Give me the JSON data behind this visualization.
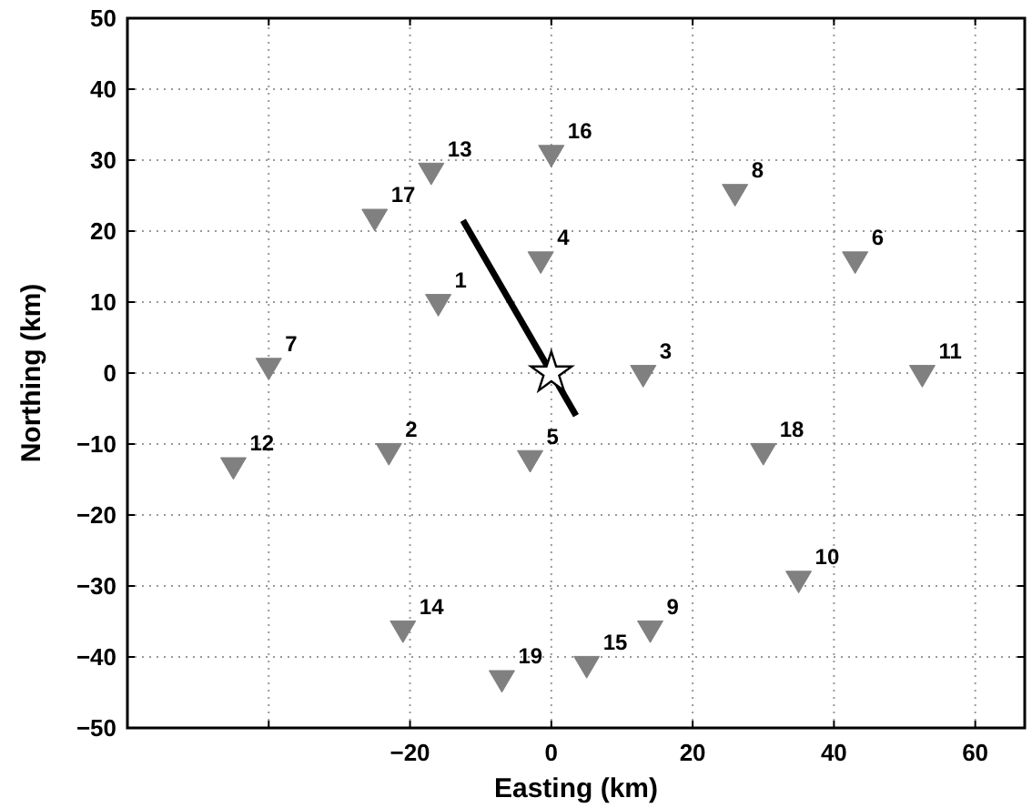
{
  "chart_data": {
    "type": "scatter",
    "xlabel": "Easting (km)",
    "ylabel": "Northing (km)",
    "xlim": [
      -60,
      67
    ],
    "xticks": [
      {
        "value": -40,
        "label": null
      },
      -20,
      0,
      20,
      40,
      60
    ],
    "ylim": [
      -50,
      50
    ],
    "yticks": [
      -50,
      -40,
      -30,
      -20,
      -10,
      0,
      10,
      20,
      30,
      40,
      50
    ],
    "grid": true,
    "series": [
      {
        "marker": "triangle",
        "color": "#808080",
        "x": [
          -16,
          -23,
          13,
          -1.5,
          -3,
          43,
          -40,
          26,
          14,
          35,
          52.5,
          -45,
          -17,
          -21,
          5,
          0,
          -25,
          30,
          -7
        ],
        "values": [
          10,
          -11,
          0,
          16,
          -12,
          16,
          1,
          25.5,
          -36,
          -29,
          0,
          -13,
          28.5,
          -36,
          -41,
          31,
          22,
          -11,
          -43
        ]
      },
      {
        "type": "line",
        "marker": "none",
        "color": "#000000",
        "x": [
          -12.5,
          3.5
        ],
        "values": [
          21.5,
          -6
        ]
      },
      {
        "marker": "star",
        "color": "#ffffff",
        "x": [
          0
        ],
        "values": [
          0
        ]
      }
    ],
    "annotations": [
      {
        "text": "1",
        "x": -16,
        "y": 10
      },
      {
        "text": "2",
        "x": -23,
        "y": -11
      },
      {
        "text": "3",
        "x": 13,
        "y": 0
      },
      {
        "text": "4",
        "x": -1.5,
        "y": 16
      },
      {
        "text": "5",
        "x": -3,
        "y": -12
      },
      {
        "text": "6",
        "x": 43,
        "y": 16
      },
      {
        "text": "7",
        "x": -40,
        "y": 1
      },
      {
        "text": "8",
        "x": 26,
        "y": 25.5
      },
      {
        "text": "9",
        "x": 14,
        "y": -36
      },
      {
        "text": "10",
        "x": 35,
        "y": -29
      },
      {
        "text": "11",
        "x": 52.5,
        "y": 0
      },
      {
        "text": "12",
        "x": -45,
        "y": -13
      },
      {
        "text": "13",
        "x": -17,
        "y": 28.5
      },
      {
        "text": "14",
        "x": -21,
        "y": -36
      },
      {
        "text": "15",
        "x": 5,
        "y": -41
      },
      {
        "text": "16",
        "x": 0,
        "y": 31
      },
      {
        "text": "17",
        "x": -25,
        "y": 22
      },
      {
        "text": "18",
        "x": 30,
        "y": -11
      },
      {
        "text": "19",
        "x": -7,
        "y": -43
      }
    ]
  }
}
